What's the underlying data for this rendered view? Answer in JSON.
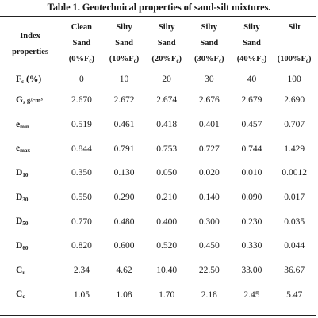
{
  "caption": "Table 1. Geotechnical properties of sand-silt mixtures.",
  "header": {
    "index_line1": "Index",
    "index_line2": "properties",
    "columns": [
      {
        "line1": "Clean",
        "line2": "Sand",
        "pct": "(0%F",
        "sub": "c",
        "close": ")"
      },
      {
        "line1": "Silty",
        "line2": "Sand",
        "pct": "(10%F",
        "sub": "c",
        "close": ")"
      },
      {
        "line1": "Silty",
        "line2": "Sand",
        "pct": "(20%F",
        "sub": "c",
        "close": ")"
      },
      {
        "line1": "Silty",
        "line2": "Sand",
        "pct": "(30%F",
        "sub": "c",
        "close": ")"
      },
      {
        "line1": "Silty",
        "line2": "Sand",
        "pct": "(40%F",
        "sub": "c",
        "close": ")"
      },
      {
        "line1": "Silt",
        "line2": "",
        "pct": "(100%F",
        "sub": "c",
        "close": ")"
      }
    ]
  },
  "rows": [
    {
      "label": "F",
      "sub": "c",
      "suffix": " (%)",
      "values": [
        "0",
        "10",
        "20",
        "30",
        "40",
        "100"
      ]
    },
    {
      "label": "G",
      "sub": "s",
      "suffix": " g/cm³",
      "values": [
        "2.670",
        "2.672",
        "2.674",
        "2.676",
        "2.679",
        "2.690"
      ]
    },
    {
      "label": "e",
      "sub": "min",
      "suffix": "",
      "values": [
        "0.519",
        "0.461",
        "0.418",
        "0.401",
        "0.457",
        "0.707"
      ]
    },
    {
      "label": "e",
      "sub": "max",
      "suffix": "",
      "values": [
        "0.844",
        "0.791",
        "0.753",
        "0.727",
        "0.744",
        "1.429"
      ]
    },
    {
      "label": "D",
      "sub": "10",
      "suffix": "",
      "values": [
        "0.350",
        "0.130",
        "0.050",
        "0.020",
        "0.010",
        "0.0012"
      ]
    },
    {
      "label": "D",
      "sub": "30",
      "suffix": "",
      "values": [
        "0.550",
        "0.290",
        "0.210",
        "0.140",
        "0.090",
        "0.017"
      ]
    },
    {
      "label": "D",
      "sub": "50",
      "suffix": "",
      "values": [
        "0.770",
        "0.480",
        "0.400",
        "0.300",
        "0.230",
        "0.035"
      ]
    },
    {
      "label": "D",
      "sub": "60",
      "suffix": "",
      "values": [
        "0.820",
        "0.600",
        "0.520",
        "0.450",
        "0.330",
        "0.044"
      ]
    },
    {
      "label": "C",
      "sub": "u",
      "suffix": "",
      "values": [
        "2.34",
        "4.62",
        "10.40",
        "22.50",
        "33.00",
        "36.67"
      ]
    },
    {
      "label": "C",
      "sub": "c",
      "suffix": "",
      "values": [
        "1.05",
        "1.08",
        "1.70",
        "2.18",
        "2.45",
        "5.47"
      ]
    }
  ]
}
